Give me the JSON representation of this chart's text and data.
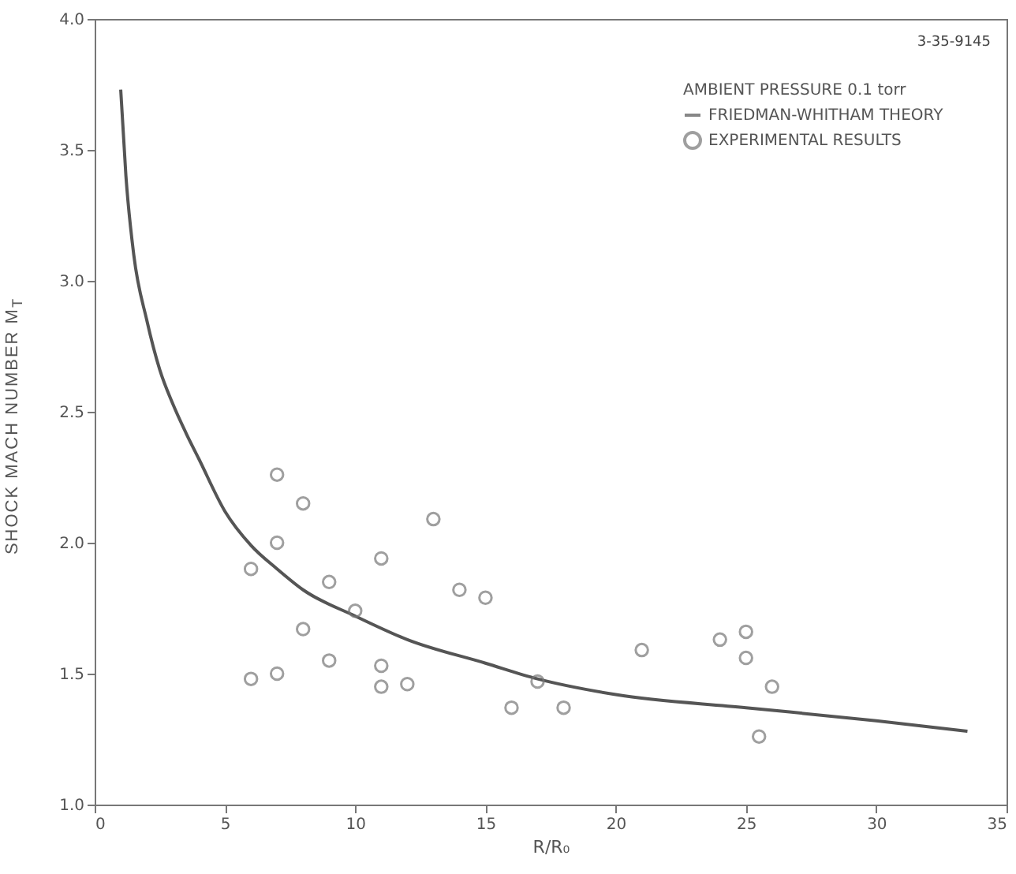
{
  "chart_data": {
    "type": "scatter",
    "xlabel": "R/R₀",
    "ylabel": "SHOCK MACH NUMBER M$_{T}$",
    "legend_title": "AMBIENT PRESSURE 0.1 torr",
    "annotations": [
      "3-35-9145"
    ],
    "xlim": [
      0,
      35
    ],
    "xticks": [
      0,
      5,
      10,
      15,
      20,
      25,
      30,
      35
    ],
    "ylim": [
      1,
      4
    ],
    "yticks": [
      {
        "value": 1,
        "label": "1.0"
      },
      {
        "value": 1.5,
        "label": "1.5"
      },
      {
        "value": 2,
        "label": "2.0"
      },
      {
        "value": 2.5,
        "label": "2.5"
      },
      {
        "value": 3,
        "label": "3.0"
      },
      {
        "value": 3.5,
        "label": "3.5"
      },
      {
        "value": 4,
        "label": "4.0"
      }
    ],
    "grid": false,
    "legend": "top right",
    "series": [
      {
        "name": "FRIEDMAN-WHITHAM THEORY",
        "type": "line",
        "color": "#555555",
        "line_style": "solid",
        "marker": "none",
        "x": [
          1,
          1.2,
          1.5,
          2,
          2.5,
          3,
          3.5,
          4,
          5,
          6,
          7,
          8,
          10,
          12,
          15,
          17,
          20,
          25,
          30,
          33.5
        ],
        "values": [
          3.73,
          3.4,
          3.1,
          2.85,
          2.66,
          2.53,
          2.42,
          2.32,
          2.12,
          1.99,
          1.9,
          1.82,
          1.72,
          1.63,
          1.54,
          1.48,
          1.42,
          1.37,
          1.32,
          1.28
        ]
      },
      {
        "name": "EXPERIMENTAL RESULTS",
        "color": "#777777",
        "marker": "circle",
        "x": [
          6,
          6,
          7,
          7,
          7,
          8,
          8,
          9,
          9,
          10,
          11,
          11,
          11,
          12,
          13,
          14,
          15,
          16,
          17,
          18,
          21,
          24,
          25,
          25,
          25.5,
          26
        ],
        "values": [
          1.9,
          1.48,
          2.26,
          2.0,
          1.5,
          2.15,
          1.67,
          1.85,
          1.55,
          1.74,
          1.94,
          1.53,
          1.45,
          1.46,
          2.09,
          1.82,
          1.79,
          1.37,
          1.47,
          1.37,
          1.59,
          1.63,
          1.66,
          1.56,
          1.26,
          1.45
        ]
      }
    ]
  }
}
